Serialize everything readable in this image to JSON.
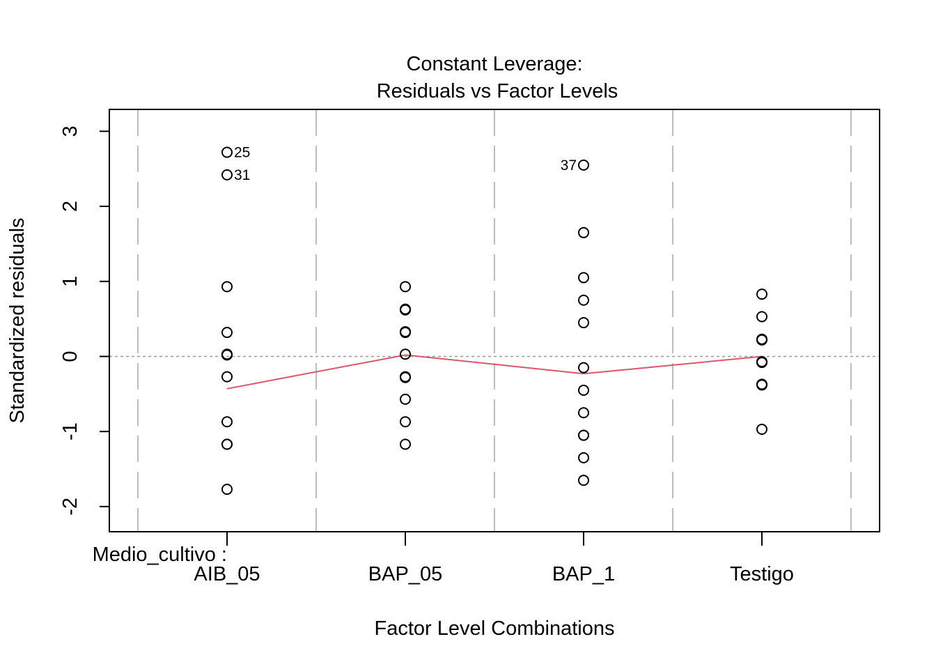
{
  "chart_data": {
    "type": "scatter",
    "title_line1": "Constant Leverage:",
    "title_line2": "Residuals vs Factor Levels",
    "xlabel": "Factor Level Combinations",
    "ylabel": "Standardized residuals",
    "factor_prefix": "Medio_cultivo :",
    "categories": [
      "AIB_05",
      "BAP_05",
      "BAP_1",
      "Testigo"
    ],
    "ylim": [
      -2.35,
      3.3
    ],
    "yticks": [
      -2,
      -1,
      0,
      1,
      2,
      3
    ],
    "ytick_labels": [
      "-2",
      "-1",
      "0",
      "1",
      "2",
      "3"
    ],
    "grid": false,
    "points": [
      {
        "group": 0,
        "y": [
          2.72,
          2.42,
          0.93,
          0.32,
          0.03,
          0.02,
          -0.27,
          -0.87,
          -1.17,
          -1.17,
          -1.77
        ]
      },
      {
        "group": 1,
        "y": [
          0.93,
          0.63,
          0.62,
          0.33,
          0.32,
          0.03,
          -0.27,
          -0.28,
          -0.57,
          -0.87,
          -1.17
        ]
      },
      {
        "group": 2,
        "y": [
          2.55,
          1.65,
          1.05,
          0.75,
          0.45,
          -0.15,
          -0.45,
          -0.75,
          -1.05,
          -1.05,
          -1.35,
          -1.65
        ]
      },
      {
        "group": 3,
        "y": [
          0.83,
          0.53,
          0.23,
          0.22,
          -0.07,
          -0.08,
          -0.37,
          -0.38,
          -0.97
        ]
      }
    ],
    "labeled_points": [
      {
        "label": "25",
        "group": 0,
        "y": 2.72,
        "side": "right"
      },
      {
        "label": "31",
        "group": 0,
        "y": 2.42,
        "side": "right"
      },
      {
        "label": "37",
        "group": 2,
        "y": 2.55,
        "side": "left"
      }
    ],
    "smoother": [
      -0.43,
      0.02,
      -0.23,
      0.0
    ],
    "reference_line_y": 0,
    "colors": {
      "smoother": "#DF536B",
      "divider": "#BEBEBE",
      "reference": "#999999",
      "points": "#000000"
    }
  }
}
